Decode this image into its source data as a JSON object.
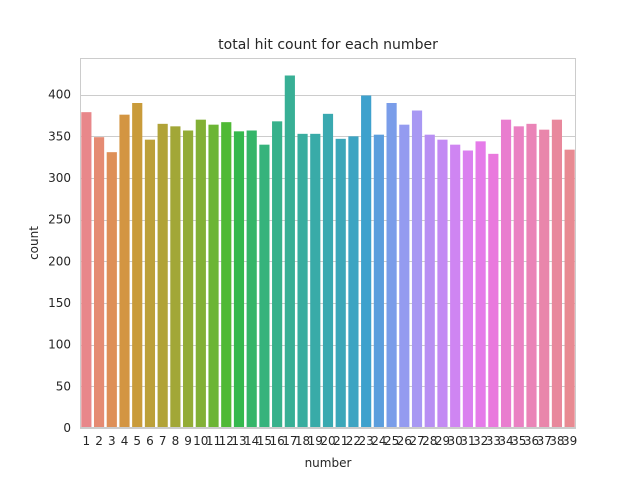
{
  "chart_data": {
    "type": "bar",
    "title": "total hit count for each number",
    "xlabel": "number",
    "ylabel": "count",
    "categories": [
      "1",
      "2",
      "3",
      "4",
      "5",
      "6",
      "7",
      "8",
      "9",
      "10",
      "11",
      "12",
      "13",
      "14",
      "15",
      "16",
      "17",
      "18",
      "19",
      "20",
      "21",
      "22",
      "23",
      "24",
      "25",
      "26",
      "27",
      "28",
      "29",
      "30",
      "31",
      "32",
      "33",
      "34",
      "35",
      "36",
      "37",
      "38",
      "39"
    ],
    "values": [
      379,
      349,
      331,
      376,
      390,
      346,
      365,
      362,
      357,
      370,
      364,
      367,
      356,
      357,
      340,
      368,
      423,
      353,
      353,
      377,
      347,
      350,
      399,
      352,
      390,
      364,
      381,
      352,
      346,
      340,
      333,
      344,
      329,
      370,
      362,
      365,
      358,
      370,
      334
    ],
    "yticks": [
      0,
      50,
      100,
      150,
      200,
      250,
      300,
      350,
      400
    ],
    "ylim": [
      0,
      444
    ],
    "grid": true,
    "colors": [
      "#e8878a",
      "#e58b73",
      "#de9058",
      "#d39542",
      "#c99b3a",
      "#bca039",
      "#b1a338",
      "#a2a737",
      "#93ac36",
      "#82b036",
      "#6cb535",
      "#4fb935",
      "#34b84d",
      "#35b569",
      "#36b37c",
      "#37b18b",
      "#38af95",
      "#39ad9f",
      "#39aba8",
      "#3aa9b0",
      "#3ca7b9",
      "#3da4c2",
      "#3ea1cd",
      "#5b9edd",
      "#7a9de9",
      "#949bf0",
      "#a898f3",
      "#b88ff3",
      "#c38af3",
      "#cf85f2",
      "#da80ef",
      "#e57be9",
      "#e979dd",
      "#e97dcf",
      "#ea81c3",
      "#ea84b7",
      "#e986ab",
      "#e8889c",
      "#e88a92"
    ]
  }
}
